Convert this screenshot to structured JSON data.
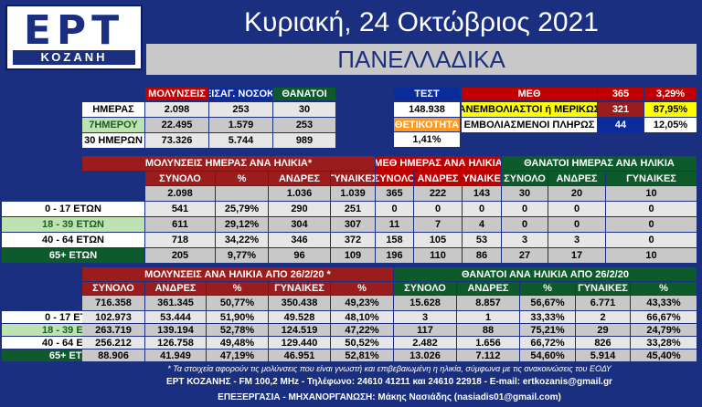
{
  "logo": {
    "brand": "ΕΡΤ",
    "city": "ΚΟΖΑΝΗ"
  },
  "header": {
    "date": "Κυριακή, 24 Οκτώβριος 2021",
    "region": "ΠΑΝΕΛΛΑΔΙΚΑ"
  },
  "summary": {
    "headers": [
      "ΜΟΛΥΝΣΕΙΣ",
      "ΕΙΣΑΓ. ΝΟΣΟΚ.",
      "ΘΑΝΑΤΟΙ"
    ],
    "rows": [
      {
        "label": "ΗΜΕΡΑΣ",
        "values": [
          "2.098",
          "253",
          "30"
        ]
      },
      {
        "label": "7ΗΜΕΡΟΥ",
        "values": [
          "22.495",
          "1.579",
          "253"
        ]
      },
      {
        "label": "30 ΗΜΕΡΩΝ",
        "values": [
          "73.326",
          "5.744",
          "989"
        ]
      }
    ]
  },
  "tests": {
    "label": "ΤΕΣΤ",
    "value": "148.938",
    "pos_label": "ΘΕΤΙΚΟΤΗΤΑ",
    "pos_value": "1,41%"
  },
  "icu": {
    "label": "ΜΕΘ",
    "total": "365",
    "total_pct": "3,29%",
    "rows": [
      {
        "label": "ΑΝΕΜΒΟΛΙΑΣΤΟΙ ή ΜΕΡΙΚΩΣ",
        "value": "321",
        "pct": "87,95%"
      },
      {
        "label": "ΕΜΒΟΛΙΑΣΜΕΝΟΙ ΠΛΗΡΩΣ",
        "value": "44",
        "pct": "12,05%"
      }
    ]
  },
  "daily_age": {
    "titles": {
      "cases": "ΜΟΛΥΝΣΕΙΣ ΗΜΕΡΑΣ ΑΝΑ ΗΛΙΚΙΑ*",
      "icu": "ΜΕΘ ΗΜΕΡΑΣ ΑΝΑ ΗΛΙΚΙΑ",
      "deaths": "ΘΑΝΑΤΟΙ ΗΜΕΡΑΣ ΑΝΑ ΗΛΙΚΙΑ"
    },
    "columns": [
      "ΣΥΝΟΛΟ",
      "%",
      "ΑΝΔΡΕΣ",
      "ΓΥΝΑΙΚΕΣ",
      "ΣΥΝΟΛΟ",
      "ΑΝΔΡΕΣ",
      "ΓΥΝΑΙΚΕΣ",
      "ΣΥΝΟΛΟ",
      "ΑΝΔΡΕΣ",
      "ΓΥΝΑΙΚΕΣ"
    ],
    "totals": [
      "2.098",
      "",
      "1.036",
      "1.039",
      "365",
      "222",
      "143",
      "30",
      "20",
      "10"
    ],
    "rows": [
      {
        "label": "0 - 17 ΕΤΩΝ",
        "values": [
          "541",
          "25,79%",
          "290",
          "251",
          "0",
          "0",
          "0",
          "0",
          "0",
          "0"
        ]
      },
      {
        "label": "18 - 39 ΕΤΩΝ",
        "values": [
          "611",
          "29,12%",
          "304",
          "307",
          "11",
          "7",
          "4",
          "0",
          "0",
          "0"
        ]
      },
      {
        "label": "40 - 64 ΕΤΩΝ",
        "values": [
          "718",
          "34,22%",
          "346",
          "372",
          "158",
          "105",
          "53",
          "3",
          "3",
          "0"
        ]
      },
      {
        "label": "65+ ΕΤΩΝ",
        "values": [
          "205",
          "9,77%",
          "96",
          "109",
          "196",
          "110",
          "86",
          "27",
          "17",
          "10"
        ]
      }
    ]
  },
  "cumulative_age": {
    "titles": {
      "cases": "ΜΟΛΥΝΣΕΙΣ ΑΝΑ ΗΛΙΚΙΑ ΑΠΟ 26/2/20 *",
      "deaths": "ΘΑΝΑΤΟΙ ΑΝΑ ΗΛΙΚΙΑ ΑΠΟ 26/2/20"
    },
    "columns": [
      "ΣΥΝΟΛΟ",
      "ΑΝΔΡΕΣ",
      "%",
      "ΓΥΝΑΙΚΕΣ",
      "%",
      "ΣΥΝΟΛΟ",
      "ΑΝΔΡΕΣ",
      "%",
      "ΓΥΝΑΙΚΕΣ",
      "%"
    ],
    "totals": [
      "716.358",
      "361.345",
      "50,77%",
      "350.438",
      "49,23%",
      "15.628",
      "8.857",
      "56,67%",
      "6.771",
      "43,33%"
    ],
    "rows": [
      {
        "label": "0 - 17 ΕΤΩΝ",
        "values": [
          "102.973",
          "53.444",
          "51,90%",
          "49.528",
          "48,10%",
          "3",
          "1",
          "33,33%",
          "2",
          "66,67%"
        ]
      },
      {
        "label": "18 - 39 ΕΤΩΝ",
        "values": [
          "263.719",
          "139.194",
          "52,78%",
          "124.519",
          "47,22%",
          "117",
          "88",
          "75,21%",
          "29",
          "24,79%"
        ]
      },
      {
        "label": "40 - 64 ΕΤΩΝ",
        "values": [
          "256.212",
          "126.758",
          "49,48%",
          "129.440",
          "50,52%",
          "2.482",
          "1.656",
          "66,72%",
          "826",
          "33,28%"
        ]
      },
      {
        "label": "65+ ΕΤΩΝ",
        "values": [
          "88.906",
          "41.949",
          "47,19%",
          "46.951",
          "52,81%",
          "13.026",
          "7.112",
          "54,60%",
          "5.914",
          "45,40%"
        ]
      }
    ]
  },
  "footer": {
    "note": "* Τα στοιχεία αφορούν τις μολύνσεις που είναι γνωστή και επιβεβαιωμένη η ηλικία, σύμφωνα με τις ανακοινώσεις του ΕΟΔΥ",
    "contact": "ΕΡΤ ΚΟΖΑΝΗΣ - FM 100,2 MHz - Τηλέφωνο: 24610 41211 και 24610 22918 - E-mail: ertkozanis@gmail.gr",
    "credits": "ΕΠΕΞΕΡΓΑΣΙΑ - ΜΗΧΑΝΟΡΓΑΝΩΣΗ: Μάκης Νασιάδης (nasiadis01@gmail.com)"
  }
}
